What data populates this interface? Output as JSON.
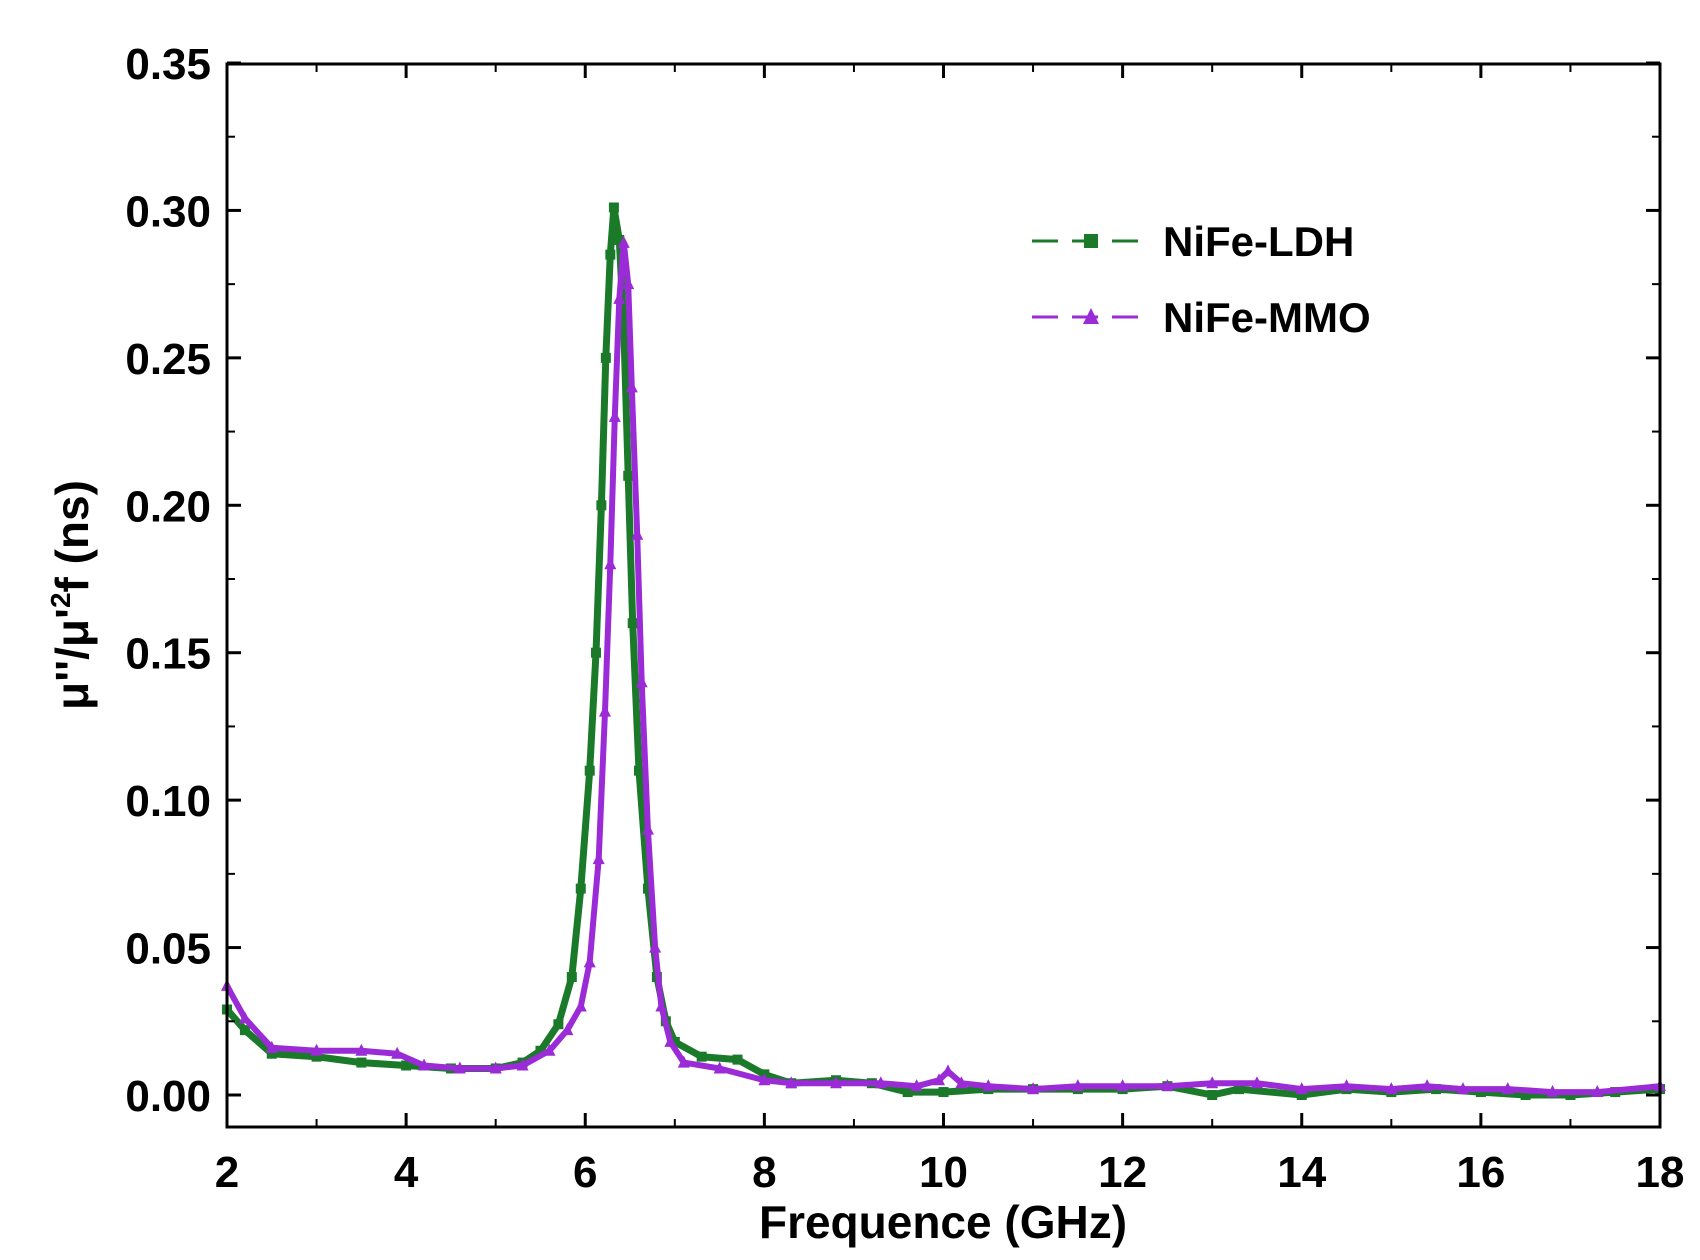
{
  "chart_data": {
    "type": "line",
    "title": "",
    "xlabel": "Frequence (GHz)",
    "ylabel": "μ''/μ'²f (ns)",
    "ylabel_parts": {
      "prefix": "μ''/μ'",
      "sup": "2",
      "suffix": "f (ns)"
    },
    "xlim": [
      2,
      18
    ],
    "ylim": [
      -0.01,
      0.35
    ],
    "x_ticks": [
      "2",
      "4",
      "6",
      "8",
      "10",
      "12",
      "14",
      "16",
      "18"
    ],
    "y_ticks": [
      "0.00",
      "0.05",
      "0.10",
      "0.15",
      "0.20",
      "0.25",
      "0.30",
      "0.35"
    ],
    "legend_position": "top-right",
    "grid": false,
    "series": [
      {
        "name": "NiFe-LDH",
        "color": "#1a7a2a",
        "marker": "square",
        "line": "dashed",
        "points": [
          [
            2.0,
            0.029
          ],
          [
            2.2,
            0.022
          ],
          [
            2.5,
            0.014
          ],
          [
            3.0,
            0.013
          ],
          [
            3.5,
            0.011
          ],
          [
            4.0,
            0.01
          ],
          [
            4.5,
            0.009
          ],
          [
            5.0,
            0.009
          ],
          [
            5.3,
            0.011
          ],
          [
            5.5,
            0.015
          ],
          [
            5.7,
            0.024
          ],
          [
            5.85,
            0.04
          ],
          [
            5.95,
            0.07
          ],
          [
            6.05,
            0.11
          ],
          [
            6.12,
            0.15
          ],
          [
            6.18,
            0.2
          ],
          [
            6.23,
            0.25
          ],
          [
            6.28,
            0.285
          ],
          [
            6.32,
            0.301
          ],
          [
            6.38,
            0.29
          ],
          [
            6.43,
            0.26
          ],
          [
            6.48,
            0.21
          ],
          [
            6.53,
            0.16
          ],
          [
            6.6,
            0.11
          ],
          [
            6.7,
            0.07
          ],
          [
            6.8,
            0.04
          ],
          [
            6.9,
            0.025
          ],
          [
            7.0,
            0.018
          ],
          [
            7.3,
            0.013
          ],
          [
            7.7,
            0.012
          ],
          [
            8.0,
            0.007
          ],
          [
            8.3,
            0.004
          ],
          [
            8.8,
            0.005
          ],
          [
            9.2,
            0.004
          ],
          [
            9.6,
            0.001
          ],
          [
            10.0,
            0.001
          ],
          [
            10.5,
            0.002
          ],
          [
            11.0,
            0.002
          ],
          [
            11.5,
            0.002
          ],
          [
            12.0,
            0.002
          ],
          [
            12.5,
            0.003
          ],
          [
            13.0,
            0.0
          ],
          [
            13.3,
            0.002
          ],
          [
            14.0,
            0.0
          ],
          [
            14.5,
            0.002
          ],
          [
            15.0,
            0.001
          ],
          [
            15.5,
            0.002
          ],
          [
            16.0,
            0.001
          ],
          [
            16.5,
            0.0
          ],
          [
            17.0,
            0.0
          ],
          [
            17.5,
            0.001
          ],
          [
            18.0,
            0.002
          ]
        ]
      },
      {
        "name": "NiFe-MMO",
        "color": "#9a2bd6",
        "marker": "triangle",
        "line": "dashed",
        "points": [
          [
            2.0,
            0.037
          ],
          [
            2.2,
            0.026
          ],
          [
            2.5,
            0.016
          ],
          [
            3.0,
            0.015
          ],
          [
            3.5,
            0.015
          ],
          [
            3.9,
            0.014
          ],
          [
            4.2,
            0.01
          ],
          [
            4.6,
            0.009
          ],
          [
            5.0,
            0.009
          ],
          [
            5.3,
            0.01
          ],
          [
            5.6,
            0.015
          ],
          [
            5.8,
            0.022
          ],
          [
            5.95,
            0.03
          ],
          [
            6.05,
            0.045
          ],
          [
            6.15,
            0.08
          ],
          [
            6.22,
            0.13
          ],
          [
            6.28,
            0.18
          ],
          [
            6.33,
            0.23
          ],
          [
            6.38,
            0.27
          ],
          [
            6.43,
            0.289
          ],
          [
            6.48,
            0.275
          ],
          [
            6.52,
            0.24
          ],
          [
            6.58,
            0.19
          ],
          [
            6.63,
            0.14
          ],
          [
            6.7,
            0.09
          ],
          [
            6.78,
            0.05
          ],
          [
            6.85,
            0.03
          ],
          [
            6.95,
            0.018
          ],
          [
            7.1,
            0.011
          ],
          [
            7.5,
            0.009
          ],
          [
            8.0,
            0.005
          ],
          [
            8.3,
            0.004
          ],
          [
            8.8,
            0.004
          ],
          [
            9.3,
            0.004
          ],
          [
            9.7,
            0.003
          ],
          [
            9.95,
            0.005
          ],
          [
            10.05,
            0.008
          ],
          [
            10.2,
            0.004
          ],
          [
            10.5,
            0.003
          ],
          [
            11.0,
            0.002
          ],
          [
            11.5,
            0.003
          ],
          [
            12.0,
            0.003
          ],
          [
            12.5,
            0.003
          ],
          [
            13.0,
            0.004
          ],
          [
            13.5,
            0.004
          ],
          [
            14.0,
            0.002
          ],
          [
            14.5,
            0.003
          ],
          [
            15.0,
            0.002
          ],
          [
            15.4,
            0.003
          ],
          [
            15.8,
            0.002
          ],
          [
            16.3,
            0.002
          ],
          [
            16.8,
            0.001
          ],
          [
            17.3,
            0.001
          ],
          [
            18.0,
            0.003
          ]
        ]
      }
    ]
  }
}
